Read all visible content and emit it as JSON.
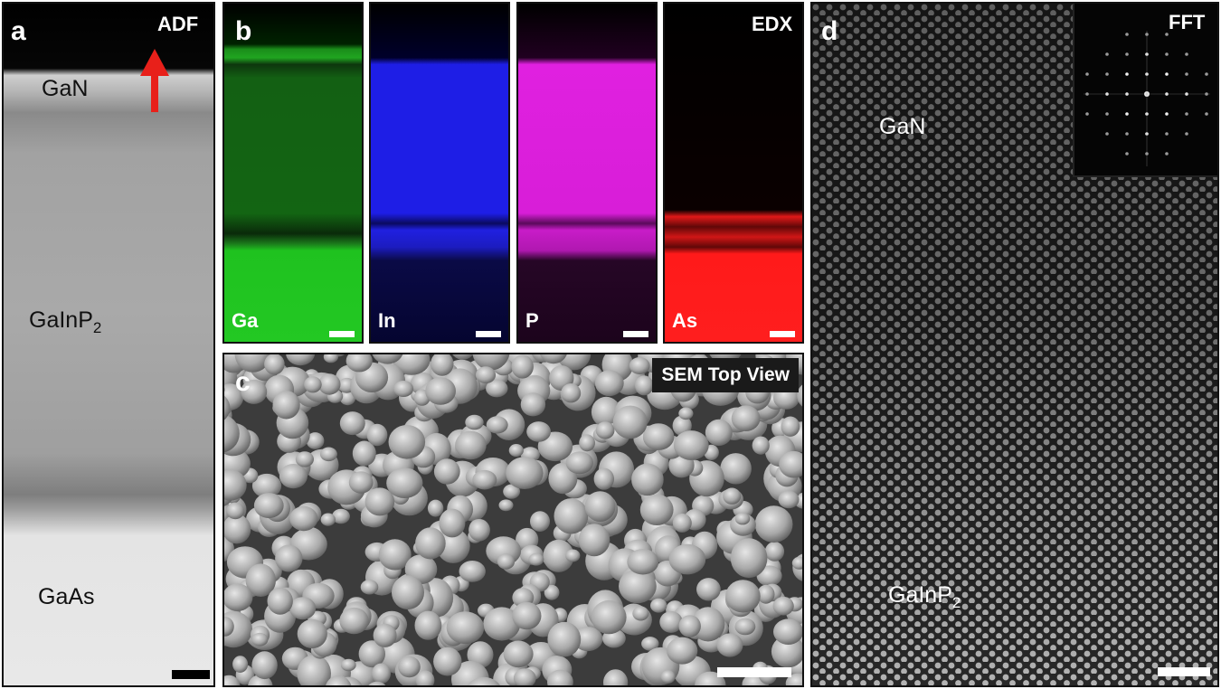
{
  "panel_a": {
    "letter": "a",
    "mode": "ADF",
    "layers": {
      "top": "GaN",
      "middle_base": "GaInP",
      "middle_sub": "2",
      "bottom": "GaAs"
    }
  },
  "panel_b": {
    "letter": "b",
    "mode": "EDX",
    "maps": [
      {
        "element": "Ga",
        "color": "#1fc21f"
      },
      {
        "element": "In",
        "color": "#2020f0"
      },
      {
        "element": "P",
        "color": "#e020e0"
      },
      {
        "element": "As",
        "color": "#ff1a1a"
      }
    ]
  },
  "panel_c": {
    "letter": "c",
    "mode": "SEM Top View"
  },
  "panel_d": {
    "letter": "d",
    "inset": "FFT",
    "layers": {
      "top": "GaN",
      "bottom_base": "GaInP",
      "bottom_sub": "2"
    }
  },
  "colors": {
    "arrow": "#e8201a",
    "frame": "#111111"
  }
}
